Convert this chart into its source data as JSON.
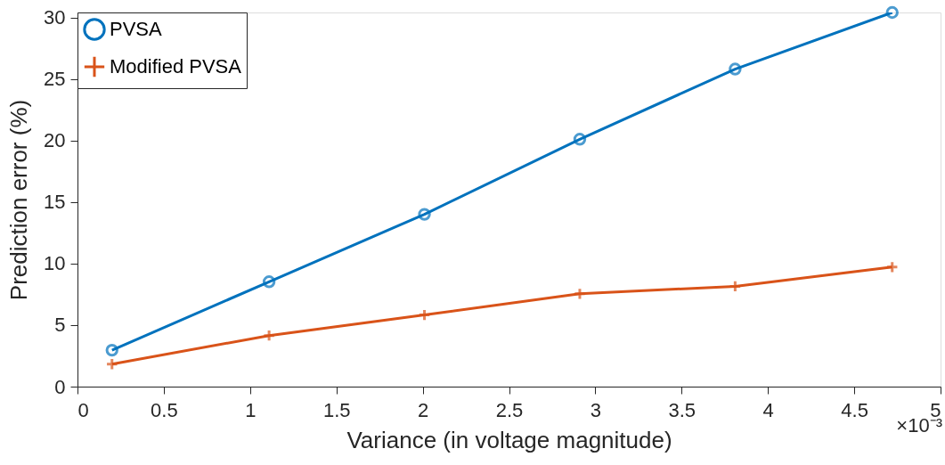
{
  "chart_data": {
    "type": "line",
    "xlabel": "Variance (in voltage magnitude)",
    "ylabel": "Prediction error (%)",
    "annotations": [
      "×10⁻³"
    ],
    "xlim": [
      0,
      5
    ],
    "xticks": [
      0,
      0.5,
      1,
      1.5,
      2,
      2.5,
      3,
      3.5,
      4,
      4.5,
      5
    ],
    "ylim": [
      0,
      30.4
    ],
    "yticks": [
      0,
      5,
      10,
      15,
      20,
      25,
      30
    ],
    "x": [
      0.2,
      1.11,
      2.01,
      2.91,
      3.81,
      4.72
    ],
    "series": [
      {
        "name": "PVSA",
        "color": "#0072bd",
        "marker": "circle",
        "values": [
          2.96,
          8.52,
          14.0,
          20.1,
          25.8,
          30.4
        ]
      },
      {
        "name": "Modified PVSA",
        "color": "#d95319",
        "marker": "cross",
        "values": [
          1.83,
          4.15,
          5.82,
          7.54,
          8.15,
          9.71
        ]
      }
    ],
    "legend": "top left",
    "grid": false,
    "line_style": "solid"
  }
}
